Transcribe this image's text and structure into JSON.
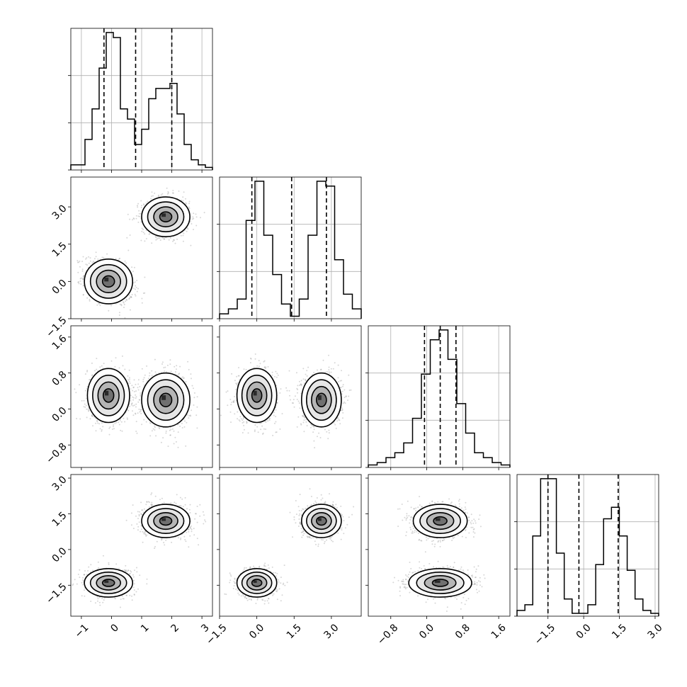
{
  "chart_data": {
    "type": "corner",
    "parameters": [
      {
        "ticks": [
          -1,
          0,
          1,
          2,
          3
        ],
        "tick_labels": [
          "−1",
          "0",
          "1",
          "2",
          "3"
        ],
        "range": [
          -1.35,
          3.35
        ],
        "quantiles": [
          -0.25,
          0.8,
          2.0
        ],
        "hist_max": 27,
        "hist_counts": [
          1,
          1,
          6,
          12,
          20,
          27,
          26,
          12,
          10,
          5,
          8,
          14,
          16,
          16,
          17,
          11,
          5,
          2,
          1,
          0.5
        ]
      },
      {
        "ticks": [
          -1.5,
          0.0,
          1.5,
          3.0
        ],
        "tick_labels": [
          "−1.5",
          "0.0",
          "1.5",
          "3.0"
        ],
        "range": [
          -1.5,
          4.2
        ],
        "quantiles": [
          -0.2,
          1.4,
          2.8
        ],
        "hist_max": 28,
        "hist_counts": [
          1,
          2,
          4,
          20,
          28,
          17,
          9,
          3,
          0.5,
          4,
          17,
          28,
          27,
          12,
          5,
          2
        ]
      },
      {
        "ticks": [
          -0.8,
          0.0,
          0.8,
          1.6
        ],
        "tick_labels": [
          "−0.8",
          "0.0",
          "0.8",
          "1.6"
        ],
        "range": [
          -1.3,
          1.85
        ],
        "quantiles": [
          -0.05,
          0.3,
          0.65
        ],
        "hist_max": 28,
        "hist_counts": [
          0.5,
          1,
          2,
          3,
          5,
          10,
          19,
          26,
          28,
          22,
          13,
          7,
          3,
          2,
          1,
          0.5
        ]
      },
      {
        "ticks": [
          -1.5,
          0.0,
          1.5,
          3.0
        ],
        "tick_labels": [
          "−1.5",
          "0.0",
          "1.5",
          "3.0"
        ],
        "range": [
          -2.8,
          3.15
        ],
        "quantiles": [
          -1.5,
          -0.2,
          1.45
        ],
        "hist_max": 24,
        "hist_counts": [
          1,
          2,
          14,
          24,
          24,
          11,
          3,
          0.5,
          0.5,
          2,
          9,
          17,
          19,
          14,
          8,
          3,
          1,
          0.5
        ]
      }
    ],
    "joint": [
      {
        "x": 0,
        "y": 1,
        "modes": [
          {
            "cx": -0.1,
            "cy": 0.0,
            "sx": 0.4,
            "sy": 0.45,
            "rho": -0.3,
            "w": 0.5
          },
          {
            "cx": 1.8,
            "cy": 2.6,
            "sx": 0.4,
            "sy": 0.4,
            "rho": 0.0,
            "w": 0.5
          }
        ]
      },
      {
        "x": 0,
        "y": 2,
        "modes": [
          {
            "cx": -0.1,
            "cy": 0.3,
            "sx": 0.35,
            "sy": 0.3,
            "rho": 0.0,
            "w": 0.5
          },
          {
            "cx": 1.8,
            "cy": 0.2,
            "sx": 0.4,
            "sy": 0.3,
            "rho": 0.0,
            "w": 0.5
          }
        ]
      },
      {
        "x": 1,
        "y": 2,
        "modes": [
          {
            "cx": 0.0,
            "cy": 0.3,
            "sx": 0.4,
            "sy": 0.3,
            "rho": 0.0,
            "w": 0.5
          },
          {
            "cx": 2.6,
            "cy": 0.2,
            "sx": 0.4,
            "sy": 0.3,
            "rho": 0.0,
            "w": 0.5
          }
        ]
      },
      {
        "x": 0,
        "y": 3,
        "modes": [
          {
            "cx": -0.1,
            "cy": -1.4,
            "sx": 0.4,
            "sy": 0.3,
            "rho": 0.0,
            "w": 0.5
          },
          {
            "cx": 1.8,
            "cy": 1.2,
            "sx": 0.4,
            "sy": 0.35,
            "rho": 0.0,
            "w": 0.5
          }
        ]
      },
      {
        "x": 1,
        "y": 3,
        "modes": [
          {
            "cx": 0.0,
            "cy": -1.4,
            "sx": 0.4,
            "sy": 0.3,
            "rho": 0.0,
            "w": 0.5
          },
          {
            "cx": 2.6,
            "cy": 1.2,
            "sx": 0.4,
            "sy": 0.35,
            "rho": 0.0,
            "w": 0.5
          }
        ]
      },
      {
        "x": 2,
        "y": 3,
        "modes": [
          {
            "cx": 0.3,
            "cy": 1.2,
            "sx": 0.3,
            "sy": 0.35,
            "rho": 0.0,
            "w": 0.5
          },
          {
            "cx": 0.3,
            "cy": -1.4,
            "sx": 0.35,
            "sy": 0.3,
            "rho": 0.0,
            "w": 0.5
          }
        ]
      }
    ],
    "grid": true,
    "legend": "none",
    "colors": {
      "line": "#000000",
      "grid": "#b0b0b0",
      "points": "#8c8c8c"
    }
  }
}
